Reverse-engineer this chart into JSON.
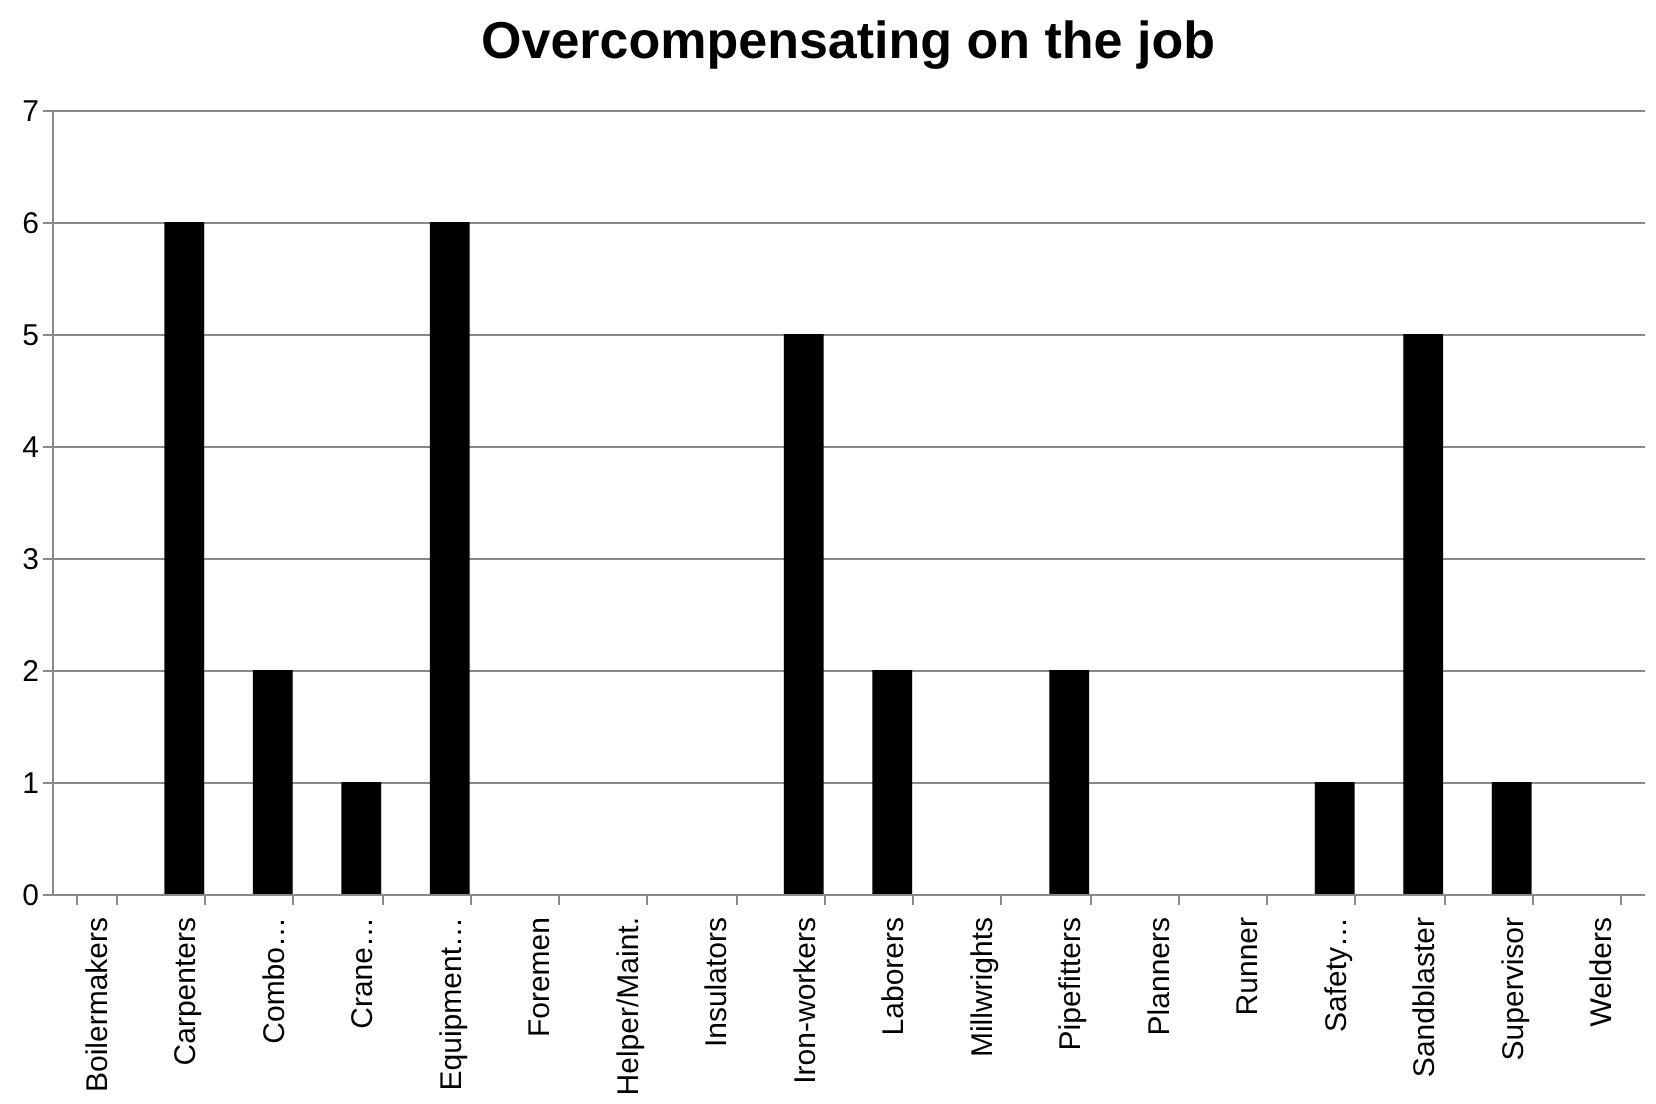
{
  "chart_data": {
    "type": "bar",
    "title": "Overcompensating on the job",
    "categories": [
      "Boilermakers",
      "Carpenters",
      "Combo…",
      "Crane…",
      "Equipment…",
      "Foremen",
      "Helper/Maint.",
      "Insulators",
      "Iron-workers",
      "Laborers",
      "Millwrights",
      "Pipefitters",
      "Planners",
      "Runner",
      "Safety…",
      "Sandblaster",
      "Supervisor",
      "Welders"
    ],
    "values": [
      0,
      6,
      2,
      1,
      6,
      0,
      0,
      0,
      5,
      2,
      0,
      2,
      0,
      0,
      1,
      5,
      1,
      0
    ],
    "color": "#000000",
    "ylim": [
      0,
      7
    ],
    "yticks": [
      0,
      1,
      2,
      3,
      4,
      5,
      6,
      7
    ],
    "grid": "y"
  }
}
